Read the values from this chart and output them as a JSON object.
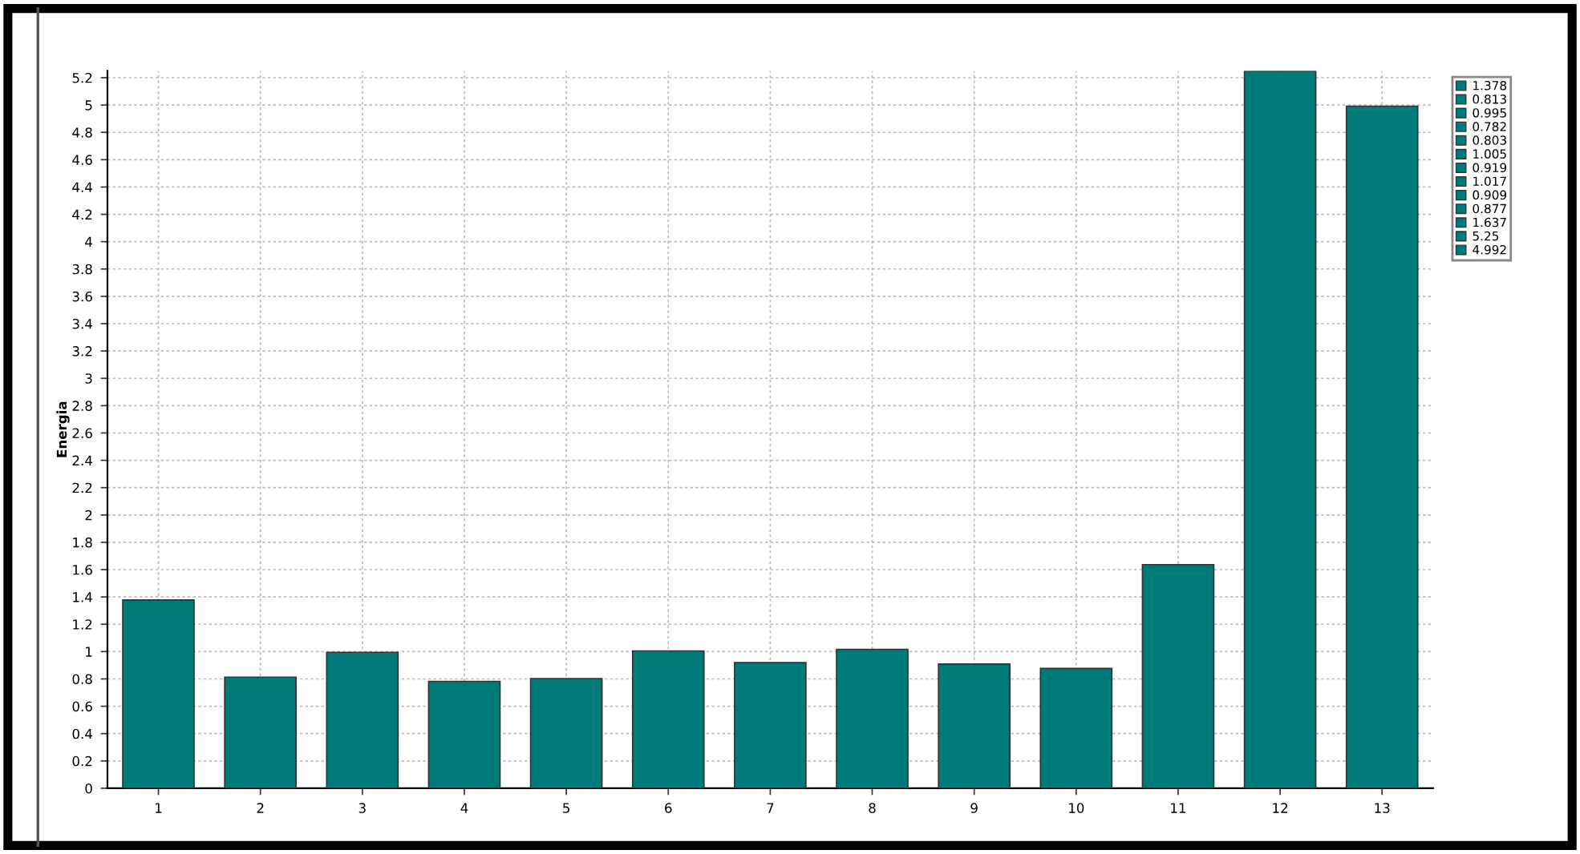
{
  "chart_data": {
    "type": "bar",
    "ylabel": "Energia",
    "categories": [
      "1",
      "2",
      "3",
      "4",
      "5",
      "6",
      "7",
      "8",
      "9",
      "10",
      "11",
      "12",
      "13"
    ],
    "series": [
      {
        "name": "1.378",
        "color": "#007b7b",
        "values": [
          1.378,
          null,
          null,
          null,
          null,
          null,
          null,
          null,
          null,
          null,
          null,
          null,
          null
        ]
      },
      {
        "name": "0.813",
        "color": "#007b7b",
        "values": [
          null,
          0.813,
          null,
          null,
          null,
          null,
          null,
          null,
          null,
          null,
          null,
          null,
          null
        ]
      },
      {
        "name": "0.995",
        "color": "#007b7b",
        "values": [
          null,
          null,
          0.995,
          null,
          null,
          null,
          null,
          null,
          null,
          null,
          null,
          null,
          null
        ]
      },
      {
        "name": "0.782",
        "color": "#007b7b",
        "values": [
          null,
          null,
          null,
          0.782,
          null,
          null,
          null,
          null,
          null,
          null,
          null,
          null,
          null
        ]
      },
      {
        "name": "0.803",
        "color": "#007b7b",
        "values": [
          null,
          null,
          null,
          null,
          0.803,
          null,
          null,
          null,
          null,
          null,
          null,
          null,
          null
        ]
      },
      {
        "name": "1.005",
        "color": "#007b7b",
        "values": [
          null,
          null,
          null,
          null,
          null,
          1.005,
          null,
          null,
          null,
          null,
          null,
          null,
          null
        ]
      },
      {
        "name": "0.919",
        "color": "#007b7b",
        "values": [
          null,
          null,
          null,
          null,
          null,
          null,
          0.919,
          null,
          null,
          null,
          null,
          null,
          null
        ]
      },
      {
        "name": "1.017",
        "color": "#007b7b",
        "values": [
          null,
          null,
          null,
          null,
          null,
          null,
          null,
          1.017,
          null,
          null,
          null,
          null,
          null
        ]
      },
      {
        "name": "0.909",
        "color": "#007b7b",
        "values": [
          null,
          null,
          null,
          null,
          null,
          null,
          null,
          null,
          0.909,
          null,
          null,
          null,
          null
        ]
      },
      {
        "name": "0.877",
        "color": "#007b7b",
        "values": [
          null,
          null,
          null,
          null,
          null,
          null,
          null,
          null,
          null,
          0.877,
          null,
          null,
          null
        ]
      },
      {
        "name": "1.637",
        "color": "#007b7b",
        "values": [
          null,
          null,
          null,
          null,
          null,
          null,
          null,
          null,
          null,
          null,
          1.637,
          null,
          null
        ]
      },
      {
        "name": "5.25",
        "color": "#007b7b",
        "values": [
          null,
          null,
          null,
          null,
          null,
          null,
          null,
          null,
          null,
          null,
          null,
          5.25,
          null
        ]
      },
      {
        "name": "4.992",
        "color": "#007b7b",
        "values": [
          null,
          null,
          null,
          null,
          null,
          null,
          null,
          null,
          null,
          null,
          null,
          null,
          4.992
        ]
      }
    ],
    "ylim": [
      0,
      5.25
    ],
    "yticks": [
      0,
      0.2,
      0.4,
      0.6,
      0.8,
      1,
      1.2,
      1.4,
      1.6,
      1.8,
      2,
      2.2,
      2.4,
      2.6,
      2.8,
      3,
      3.2,
      3.4,
      3.6,
      3.8,
      4,
      4.2,
      4.4,
      4.6,
      4.8,
      5,
      5.2
    ],
    "grid": true,
    "legend": "top right"
  }
}
